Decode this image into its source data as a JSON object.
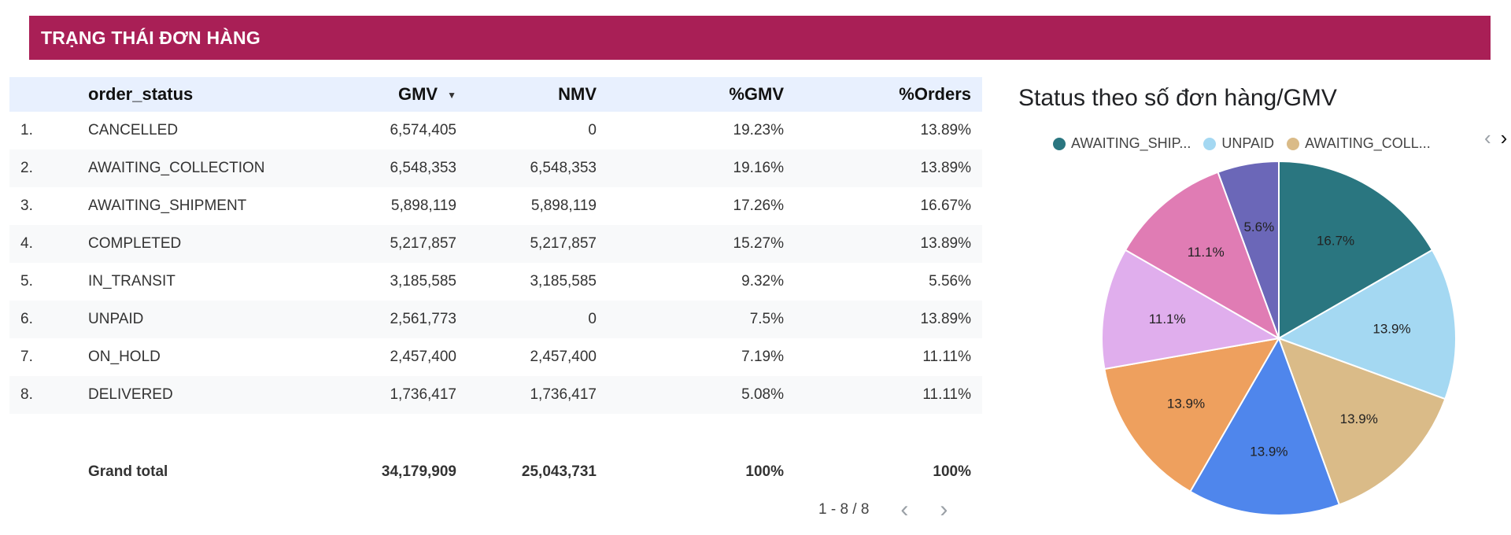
{
  "header": {
    "title": "TRẠNG THÁI ĐƠN HÀNG"
  },
  "table": {
    "columns": [
      "",
      "order_status",
      "GMV",
      "NMV",
      "%GMV",
      "%Orders"
    ],
    "sort_indicator": "▼",
    "rows": [
      {
        "idx": "1.",
        "status": "CANCELLED",
        "gmv": "6,574,405",
        "nmv": "0",
        "pct_gmv": "19.23%",
        "pct_orders": "13.89%"
      },
      {
        "idx": "2.",
        "status": "AWAITING_COLLECTION",
        "gmv": "6,548,353",
        "nmv": "6,548,353",
        "pct_gmv": "19.16%",
        "pct_orders": "13.89%"
      },
      {
        "idx": "3.",
        "status": "AWAITING_SHIPMENT",
        "gmv": "5,898,119",
        "nmv": "5,898,119",
        "pct_gmv": "17.26%",
        "pct_orders": "16.67%"
      },
      {
        "idx": "4.",
        "status": "COMPLETED",
        "gmv": "5,217,857",
        "nmv": "5,217,857",
        "pct_gmv": "15.27%",
        "pct_orders": "13.89%"
      },
      {
        "idx": "5.",
        "status": "IN_TRANSIT",
        "gmv": "3,185,585",
        "nmv": "3,185,585",
        "pct_gmv": "9.32%",
        "pct_orders": "5.56%"
      },
      {
        "idx": "6.",
        "status": "UNPAID",
        "gmv": "2,561,773",
        "nmv": "0",
        "pct_gmv": "7.5%",
        "pct_orders": "13.89%"
      },
      {
        "idx": "7.",
        "status": "ON_HOLD",
        "gmv": "2,457,400",
        "nmv": "2,457,400",
        "pct_gmv": "7.19%",
        "pct_orders": "11.11%"
      },
      {
        "idx": "8.",
        "status": "DELIVERED",
        "gmv": "1,736,417",
        "nmv": "1,736,417",
        "pct_gmv": "5.08%",
        "pct_orders": "11.11%"
      }
    ],
    "total": {
      "label": "Grand total",
      "gmv": "34,179,909",
      "nmv": "25,043,731",
      "pct_gmv": "100%",
      "pct_orders": "100%"
    },
    "pagination": "1 - 8 / 8",
    "prev_icon": "‹",
    "next_icon": "›"
  },
  "chart": {
    "title": "Status theo số đơn hàng/GMV",
    "legend": [
      {
        "label": "AWAITING_SHIP...",
        "color": "#2a7680"
      },
      {
        "label": "UNPAID",
        "color": "#a4d8f2"
      },
      {
        "label": "AWAITING_COLL...",
        "color": "#dabb88"
      }
    ],
    "legend_prev": "‹",
    "legend_next": "›"
  },
  "chart_data": {
    "type": "pie",
    "title": "Status theo số đơn hàng/GMV",
    "slices": [
      {
        "label": "16.7%",
        "value": 16.7,
        "color": "#2a7680"
      },
      {
        "label": "13.9%",
        "value": 13.9,
        "color": "#a4d8f2"
      },
      {
        "label": "13.9%",
        "value": 13.9,
        "color": "#dabb88"
      },
      {
        "label": "13.9%",
        "value": 13.9,
        "color": "#4f86ec"
      },
      {
        "label": "13.9%",
        "value": 13.9,
        "color": "#eea05e"
      },
      {
        "label": "11.1%",
        "value": 11.1,
        "color": "#e0aeed"
      },
      {
        "label": "11.1%",
        "value": 11.1,
        "color": "#e07cb4"
      },
      {
        "label": "5.6%",
        "value": 5.6,
        "color": "#6b67b8"
      }
    ],
    "legend_position": "top"
  }
}
